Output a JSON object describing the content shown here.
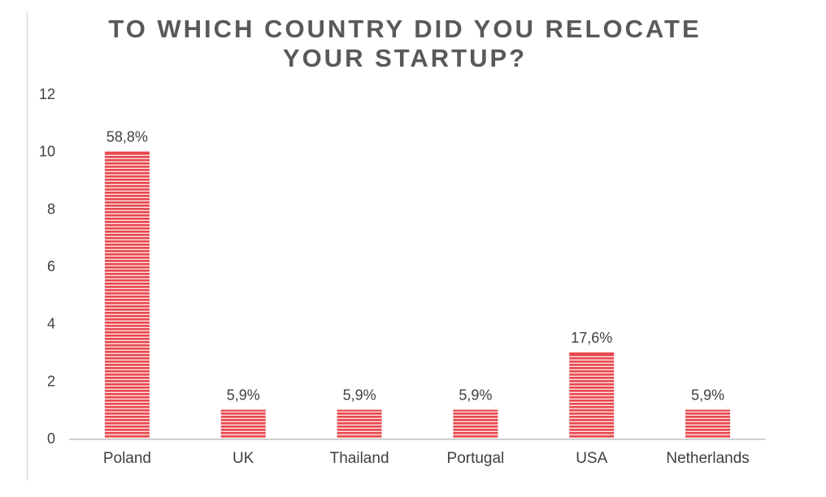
{
  "chart_data": {
    "type": "bar",
    "title_lines": [
      "TO WHICH COUNTRY DID YOU RELOCATE",
      "YOUR STARTUP?"
    ],
    "categories": [
      "Poland",
      "UK",
      "Thailand",
      "Portugal",
      "USA",
      "Netherlands"
    ],
    "values": [
      10,
      1,
      1,
      1,
      3,
      1
    ],
    "data_labels": [
      "58,8%",
      "5,9%",
      "5,9%",
      "5,9%",
      "17,6%",
      "5,9%"
    ],
    "yticks": [
      0,
      2,
      4,
      6,
      8,
      10,
      12
    ],
    "ylim": [
      0,
      12
    ],
    "grid": false,
    "legend": "none",
    "bar_color": "#e8484d",
    "bar_stripe_color": "#ffffff"
  }
}
